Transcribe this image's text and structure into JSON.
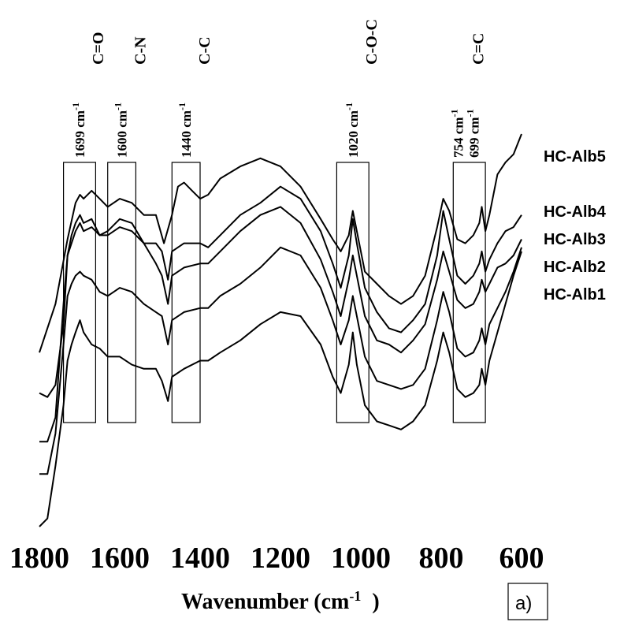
{
  "chart_data": {
    "type": "line",
    "xlabel": "Wavenumber (cm",
    "xlabel_sup": "-1",
    "xlabel_close": ")",
    "panel_label": "a)",
    "x_reversed": true,
    "xlim": [
      1800,
      600
    ],
    "x_ticks": [
      "1800",
      "1600",
      "1400",
      "1200",
      "1000",
      "800",
      "600"
    ],
    "grid": false,
    "y_axis_shown": false,
    "series": [
      {
        "name": "HC-Alb5",
        "points": [
          [
            1800,
            0.28
          ],
          [
            1760,
            0.4
          ],
          [
            1730,
            0.56
          ],
          [
            1710,
            0.65
          ],
          [
            1699,
            0.67
          ],
          [
            1690,
            0.66
          ],
          [
            1670,
            0.68
          ],
          [
            1650,
            0.66
          ],
          [
            1630,
            0.64
          ],
          [
            1600,
            0.66
          ],
          [
            1570,
            0.65
          ],
          [
            1540,
            0.62
          ],
          [
            1510,
            0.62
          ],
          [
            1490,
            0.55
          ],
          [
            1470,
            0.62
          ],
          [
            1455,
            0.69
          ],
          [
            1440,
            0.7
          ],
          [
            1420,
            0.68
          ],
          [
            1400,
            0.66
          ],
          [
            1380,
            0.67
          ],
          [
            1350,
            0.71
          ],
          [
            1300,
            0.74
          ],
          [
            1250,
            0.76
          ],
          [
            1200,
            0.74
          ],
          [
            1150,
            0.69
          ],
          [
            1100,
            0.61
          ],
          [
            1070,
            0.56
          ],
          [
            1050,
            0.53
          ],
          [
            1030,
            0.57
          ],
          [
            1020,
            0.63
          ],
          [
            1010,
            0.58
          ],
          [
            990,
            0.48
          ],
          [
            960,
            0.45
          ],
          [
            930,
            0.42
          ],
          [
            900,
            0.4
          ],
          [
            870,
            0.42
          ],
          [
            840,
            0.47
          ],
          [
            810,
            0.59
          ],
          [
            795,
            0.66
          ],
          [
            780,
            0.63
          ],
          [
            760,
            0.56
          ],
          [
            740,
            0.55
          ],
          [
            720,
            0.57
          ],
          [
            705,
            0.6
          ],
          [
            699,
            0.64
          ],
          [
            690,
            0.58
          ],
          [
            680,
            0.62
          ],
          [
            660,
            0.72
          ],
          [
            640,
            0.75
          ],
          [
            620,
            0.77
          ],
          [
            600,
            0.82
          ]
        ]
      },
      {
        "name": "HC-Alb4",
        "points": [
          [
            1800,
            0.18
          ],
          [
            1780,
            0.17
          ],
          [
            1760,
            0.2
          ],
          [
            1740,
            0.35
          ],
          [
            1730,
            0.52
          ],
          [
            1720,
            0.57
          ],
          [
            1710,
            0.6
          ],
          [
            1699,
            0.62
          ],
          [
            1690,
            0.6
          ],
          [
            1670,
            0.61
          ],
          [
            1650,
            0.57
          ],
          [
            1630,
            0.58
          ],
          [
            1600,
            0.61
          ],
          [
            1570,
            0.6
          ],
          [
            1540,
            0.55
          ],
          [
            1510,
            0.55
          ],
          [
            1495,
            0.53
          ],
          [
            1480,
            0.46
          ],
          [
            1470,
            0.53
          ],
          [
            1440,
            0.55
          ],
          [
            1400,
            0.55
          ],
          [
            1380,
            0.54
          ],
          [
            1350,
            0.57
          ],
          [
            1300,
            0.62
          ],
          [
            1250,
            0.65
          ],
          [
            1200,
            0.69
          ],
          [
            1150,
            0.66
          ],
          [
            1100,
            0.58
          ],
          [
            1070,
            0.5
          ],
          [
            1050,
            0.44
          ],
          [
            1030,
            0.52
          ],
          [
            1020,
            0.61
          ],
          [
            1010,
            0.55
          ],
          [
            990,
            0.44
          ],
          [
            960,
            0.38
          ],
          [
            930,
            0.34
          ],
          [
            900,
            0.33
          ],
          [
            870,
            0.36
          ],
          [
            840,
            0.4
          ],
          [
            810,
            0.52
          ],
          [
            795,
            0.63
          ],
          [
            780,
            0.56
          ],
          [
            760,
            0.47
          ],
          [
            740,
            0.45
          ],
          [
            720,
            0.47
          ],
          [
            705,
            0.5
          ],
          [
            699,
            0.53
          ],
          [
            690,
            0.48
          ],
          [
            680,
            0.51
          ],
          [
            660,
            0.55
          ],
          [
            640,
            0.58
          ],
          [
            620,
            0.59
          ],
          [
            600,
            0.62
          ]
        ]
      },
      {
        "name": "HC-Alb3",
        "points": [
          [
            1800,
            0.06
          ],
          [
            1780,
            0.06
          ],
          [
            1760,
            0.12
          ],
          [
            1740,
            0.4
          ],
          [
            1730,
            0.52
          ],
          [
            1720,
            0.55
          ],
          [
            1710,
            0.58
          ],
          [
            1699,
            0.6
          ],
          [
            1690,
            0.58
          ],
          [
            1670,
            0.59
          ],
          [
            1650,
            0.57
          ],
          [
            1630,
            0.57
          ],
          [
            1600,
            0.59
          ],
          [
            1570,
            0.58
          ],
          [
            1540,
            0.55
          ],
          [
            1510,
            0.5
          ],
          [
            1495,
            0.47
          ],
          [
            1480,
            0.4
          ],
          [
            1470,
            0.47
          ],
          [
            1440,
            0.49
          ],
          [
            1400,
            0.5
          ],
          [
            1380,
            0.5
          ],
          [
            1350,
            0.53
          ],
          [
            1300,
            0.58
          ],
          [
            1250,
            0.62
          ],
          [
            1200,
            0.64
          ],
          [
            1150,
            0.6
          ],
          [
            1100,
            0.51
          ],
          [
            1070,
            0.43
          ],
          [
            1050,
            0.37
          ],
          [
            1030,
            0.46
          ],
          [
            1020,
            0.52
          ],
          [
            1010,
            0.47
          ],
          [
            990,
            0.37
          ],
          [
            960,
            0.31
          ],
          [
            930,
            0.3
          ],
          [
            900,
            0.28
          ],
          [
            870,
            0.31
          ],
          [
            840,
            0.35
          ],
          [
            810,
            0.46
          ],
          [
            795,
            0.53
          ],
          [
            780,
            0.48
          ],
          [
            760,
            0.41
          ],
          [
            740,
            0.39
          ],
          [
            720,
            0.4
          ],
          [
            705,
            0.43
          ],
          [
            699,
            0.46
          ],
          [
            690,
            0.43
          ],
          [
            680,
            0.45
          ],
          [
            660,
            0.49
          ],
          [
            640,
            0.5
          ],
          [
            620,
            0.52
          ],
          [
            600,
            0.56
          ]
        ]
      },
      {
        "name": "HC-Alb2",
        "points": [
          [
            1800,
            -0.02
          ],
          [
            1780,
            -0.02
          ],
          [
            1760,
            0.08
          ],
          [
            1740,
            0.3
          ],
          [
            1730,
            0.42
          ],
          [
            1720,
            0.45
          ],
          [
            1710,
            0.47
          ],
          [
            1699,
            0.48
          ],
          [
            1690,
            0.47
          ],
          [
            1670,
            0.46
          ],
          [
            1650,
            0.43
          ],
          [
            1630,
            0.42
          ],
          [
            1600,
            0.44
          ],
          [
            1570,
            0.43
          ],
          [
            1540,
            0.4
          ],
          [
            1510,
            0.38
          ],
          [
            1495,
            0.37
          ],
          [
            1480,
            0.3
          ],
          [
            1470,
            0.36
          ],
          [
            1440,
            0.38
          ],
          [
            1400,
            0.39
          ],
          [
            1380,
            0.39
          ],
          [
            1350,
            0.42
          ],
          [
            1300,
            0.45
          ],
          [
            1250,
            0.49
          ],
          [
            1200,
            0.54
          ],
          [
            1150,
            0.52
          ],
          [
            1100,
            0.44
          ],
          [
            1070,
            0.36
          ],
          [
            1050,
            0.3
          ],
          [
            1030,
            0.36
          ],
          [
            1020,
            0.42
          ],
          [
            1010,
            0.37
          ],
          [
            990,
            0.27
          ],
          [
            960,
            0.21
          ],
          [
            930,
            0.2
          ],
          [
            900,
            0.19
          ],
          [
            870,
            0.2
          ],
          [
            840,
            0.24
          ],
          [
            810,
            0.36
          ],
          [
            795,
            0.43
          ],
          [
            780,
            0.38
          ],
          [
            760,
            0.29
          ],
          [
            740,
            0.27
          ],
          [
            720,
            0.28
          ],
          [
            705,
            0.31
          ],
          [
            699,
            0.34
          ],
          [
            690,
            0.3
          ],
          [
            680,
            0.35
          ],
          [
            660,
            0.39
          ],
          [
            640,
            0.43
          ],
          [
            620,
            0.48
          ],
          [
            600,
            0.54
          ]
        ]
      },
      {
        "name": "HC-Alb1",
        "points": [
          [
            1800,
            -0.15
          ],
          [
            1780,
            -0.13
          ],
          [
            1760,
            0.0
          ],
          [
            1740,
            0.15
          ],
          [
            1730,
            0.26
          ],
          [
            1720,
            0.3
          ],
          [
            1710,
            0.33
          ],
          [
            1699,
            0.36
          ],
          [
            1690,
            0.33
          ],
          [
            1670,
            0.3
          ],
          [
            1650,
            0.29
          ],
          [
            1630,
            0.27
          ],
          [
            1600,
            0.27
          ],
          [
            1570,
            0.25
          ],
          [
            1540,
            0.24
          ],
          [
            1510,
            0.24
          ],
          [
            1495,
            0.21
          ],
          [
            1480,
            0.16
          ],
          [
            1470,
            0.22
          ],
          [
            1440,
            0.24
          ],
          [
            1400,
            0.26
          ],
          [
            1380,
            0.26
          ],
          [
            1350,
            0.28
          ],
          [
            1300,
            0.31
          ],
          [
            1250,
            0.35
          ],
          [
            1200,
            0.38
          ],
          [
            1150,
            0.37
          ],
          [
            1100,
            0.3
          ],
          [
            1070,
            0.22
          ],
          [
            1050,
            0.18
          ],
          [
            1030,
            0.25
          ],
          [
            1020,
            0.33
          ],
          [
            1010,
            0.25
          ],
          [
            990,
            0.15
          ],
          [
            960,
            0.11
          ],
          [
            930,
            0.1
          ],
          [
            900,
            0.09
          ],
          [
            870,
            0.11
          ],
          [
            840,
            0.15
          ],
          [
            810,
            0.26
          ],
          [
            795,
            0.33
          ],
          [
            780,
            0.28
          ],
          [
            760,
            0.19
          ],
          [
            740,
            0.17
          ],
          [
            720,
            0.18
          ],
          [
            705,
            0.2
          ],
          [
            699,
            0.24
          ],
          [
            690,
            0.2
          ],
          [
            680,
            0.26
          ],
          [
            660,
            0.33
          ],
          [
            640,
            0.4
          ],
          [
            620,
            0.47
          ],
          [
            600,
            0.53
          ]
        ]
      }
    ],
    "band_regions": [
      {
        "id": "co",
        "range": [
          1740,
          1660
        ],
        "label": "1699 cm",
        "sup": "-1",
        "group": "C=O"
      },
      {
        "id": "cn",
        "range": [
          1630,
          1560
        ],
        "label": "1600 cm",
        "sup": "-1",
        "group": "C-N"
      },
      {
        "id": "cc",
        "range": [
          1470,
          1400
        ],
        "label": "1440 cm",
        "sup": "-1",
        "group": "C-C"
      },
      {
        "id": "coc",
        "range": [
          1060,
          980
        ],
        "label": "1020 cm",
        "sup": "-1",
        "group": "C-O-C"
      },
      {
        "id": "cdc",
        "range": [
          770,
          690
        ],
        "labels": [
          {
            "text": "754 cm",
            "sup": "-1"
          },
          {
            "text": "699 cm",
            "sup": "-1"
          }
        ],
        "group": "C=C"
      }
    ]
  }
}
